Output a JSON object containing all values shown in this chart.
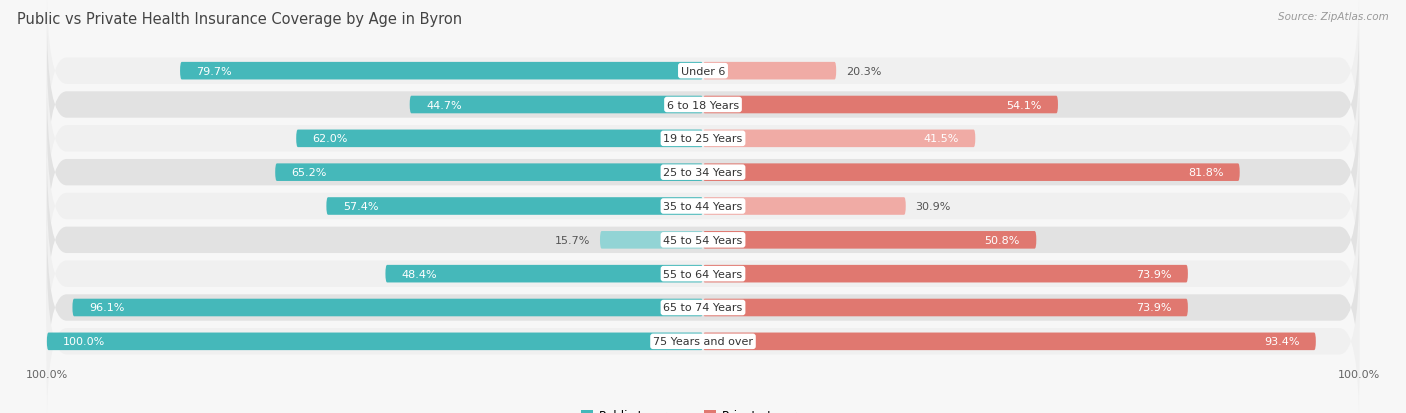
{
  "title": "Public vs Private Health Insurance Coverage by Age in Byron",
  "source": "Source: ZipAtlas.com",
  "categories": [
    "Under 6",
    "6 to 18 Years",
    "19 to 25 Years",
    "25 to 34 Years",
    "35 to 44 Years",
    "45 to 54 Years",
    "55 to 64 Years",
    "65 to 74 Years",
    "75 Years and over"
  ],
  "public_values": [
    79.7,
    44.7,
    62.0,
    65.2,
    57.4,
    15.7,
    48.4,
    96.1,
    100.0
  ],
  "private_values": [
    20.3,
    54.1,
    41.5,
    81.8,
    30.9,
    50.8,
    73.9,
    73.9,
    93.4
  ],
  "public_color_strong": "#45b8ba",
  "public_color_light": "#92d4d5",
  "private_color_strong": "#e07870",
  "private_color_light": "#f0aba5",
  "row_color_even": "#f0f0f0",
  "row_color_odd": "#e2e2e2",
  "background_color": "#f7f7f7",
  "title_fontsize": 10.5,
  "label_fontsize": 8,
  "value_fontsize": 8,
  "legend_fontsize": 8.5,
  "axis_fontsize": 8
}
